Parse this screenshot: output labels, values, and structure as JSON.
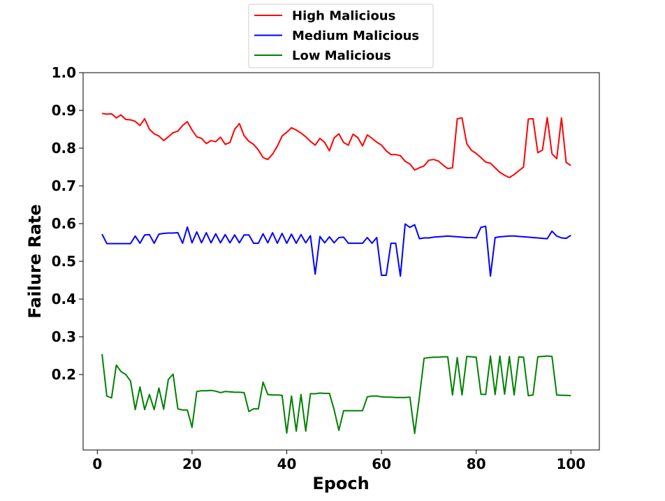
{
  "chart_data": {
    "type": "line",
    "title": "",
    "xlabel": "Epoch",
    "ylabel": "Failure Rate",
    "xlim": [
      -3,
      106
    ],
    "ylim": [
      0.0,
      1.0
    ],
    "xticks": [
      0,
      20,
      40,
      60,
      80,
      100
    ],
    "yticks": [
      0.2,
      0.3,
      0.4,
      0.5,
      0.6,
      0.7,
      0.8,
      0.9,
      1.0
    ],
    "ytick_labels": [
      "0.2",
      "0.3",
      "0.4",
      "0.5",
      "0.6",
      "0.7",
      "0.8",
      "0.9",
      "1.0"
    ],
    "xtick_labels": [
      "0",
      "20",
      "40",
      "60",
      "80",
      "100"
    ],
    "grid": false,
    "legend_position": "top-center",
    "x": [
      1,
      2,
      3,
      4,
      5,
      6,
      7,
      8,
      9,
      10,
      11,
      12,
      13,
      14,
      15,
      16,
      17,
      18,
      19,
      20,
      21,
      22,
      23,
      24,
      25,
      26,
      27,
      28,
      29,
      30,
      31,
      32,
      33,
      34,
      35,
      36,
      37,
      38,
      39,
      40,
      41,
      42,
      43,
      44,
      45,
      46,
      47,
      48,
      49,
      50,
      51,
      52,
      53,
      54,
      55,
      56,
      57,
      58,
      59,
      60,
      61,
      62,
      63,
      64,
      65,
      66,
      67,
      68,
      69,
      70,
      71,
      72,
      73,
      74,
      75,
      76,
      77,
      78,
      79,
      80,
      81,
      82,
      83,
      84,
      85,
      86,
      87,
      88,
      89,
      90,
      91,
      92,
      93,
      94,
      95,
      96,
      97,
      98,
      99,
      100
    ],
    "series": [
      {
        "name": "High Malicious",
        "color": "#ff0000",
        "values": [
          0.892,
          0.89,
          0.891,
          0.88,
          0.888,
          0.876,
          0.875,
          0.871,
          0.86,
          0.878,
          0.85,
          0.838,
          0.832,
          0.82,
          0.83,
          0.841,
          0.845,
          0.86,
          0.87,
          0.848,
          0.83,
          0.826,
          0.812,
          0.82,
          0.817,
          0.829,
          0.81,
          0.815,
          0.85,
          0.865,
          0.833,
          0.818,
          0.81,
          0.795,
          0.775,
          0.77,
          0.784,
          0.805,
          0.832,
          0.842,
          0.854,
          0.848,
          0.84,
          0.83,
          0.818,
          0.808,
          0.826,
          0.815,
          0.793,
          0.827,
          0.838,
          0.815,
          0.808,
          0.837,
          0.828,
          0.806,
          0.835,
          0.826,
          0.816,
          0.808,
          0.793,
          0.783,
          0.783,
          0.78,
          0.765,
          0.758,
          0.742,
          0.748,
          0.753,
          0.768,
          0.77,
          0.766,
          0.755,
          0.746,
          0.748,
          0.878,
          0.88,
          0.812,
          0.794,
          0.786,
          0.775,
          0.763,
          0.76,
          0.748,
          0.736,
          0.728,
          0.722,
          0.73,
          0.74,
          0.75,
          0.877,
          0.878,
          0.788,
          0.795,
          0.881,
          0.785,
          0.772,
          0.88,
          0.762,
          0.754
        ]
      },
      {
        "name": "Medium Malicious",
        "color": "#0000ff",
        "values": [
          0.572,
          0.547,
          0.547,
          0.547,
          0.547,
          0.547,
          0.547,
          0.567,
          0.548,
          0.57,
          0.571,
          0.548,
          0.572,
          0.574,
          0.575,
          0.575,
          0.576,
          0.548,
          0.591,
          0.549,
          0.578,
          0.549,
          0.576,
          0.549,
          0.573,
          0.549,
          0.571,
          0.549,
          0.57,
          0.549,
          0.57,
          0.57,
          0.548,
          0.548,
          0.573,
          0.549,
          0.576,
          0.548,
          0.574,
          0.548,
          0.572,
          0.548,
          0.571,
          0.549,
          0.568,
          0.466,
          0.566,
          0.549,
          0.565,
          0.549,
          0.563,
          0.564,
          0.548,
          0.548,
          0.548,
          0.548,
          0.563,
          0.548,
          0.563,
          0.463,
          0.463,
          0.548,
          0.548,
          0.461,
          0.599,
          0.59,
          0.597,
          0.56,
          0.562,
          0.562,
          0.564,
          0.565,
          0.566,
          0.567,
          0.566,
          0.565,
          0.564,
          0.563,
          0.563,
          0.562,
          0.59,
          0.593,
          0.461,
          0.563,
          0.565,
          0.566,
          0.567,
          0.567,
          0.566,
          0.565,
          0.564,
          0.563,
          0.562,
          0.561,
          0.56,
          0.58,
          0.567,
          0.562,
          0.561,
          0.569
        ]
      },
      {
        "name": "Low Malicious",
        "color": "#008000",
        "values": [
          0.254,
          0.143,
          0.138,
          0.225,
          0.208,
          0.2,
          0.183,
          0.107,
          0.167,
          0.107,
          0.147,
          0.107,
          0.164,
          0.108,
          0.187,
          0.201,
          0.109,
          0.106,
          0.106,
          0.06,
          0.155,
          0.157,
          0.157,
          0.158,
          0.156,
          0.152,
          0.155,
          0.154,
          0.153,
          0.153,
          0.152,
          0.102,
          0.109,
          0.109,
          0.18,
          0.147,
          0.146,
          0.146,
          0.145,
          0.045,
          0.143,
          0.05,
          0.147,
          0.05,
          0.149,
          0.149,
          0.151,
          0.15,
          0.15,
          0.107,
          0.052,
          0.104,
          0.104,
          0.104,
          0.104,
          0.104,
          0.141,
          0.143,
          0.143,
          0.141,
          0.14,
          0.14,
          0.139,
          0.139,
          0.139,
          0.14,
          0.044,
          0.14,
          0.243,
          0.245,
          0.246,
          0.246,
          0.247,
          0.247,
          0.146,
          0.245,
          0.146,
          0.248,
          0.247,
          0.246,
          0.148,
          0.147,
          0.249,
          0.147,
          0.249,
          0.148,
          0.248,
          0.146,
          0.247,
          0.246,
          0.144,
          0.146,
          0.247,
          0.248,
          0.249,
          0.248,
          0.146,
          0.145,
          0.145,
          0.144
        ]
      }
    ]
  }
}
